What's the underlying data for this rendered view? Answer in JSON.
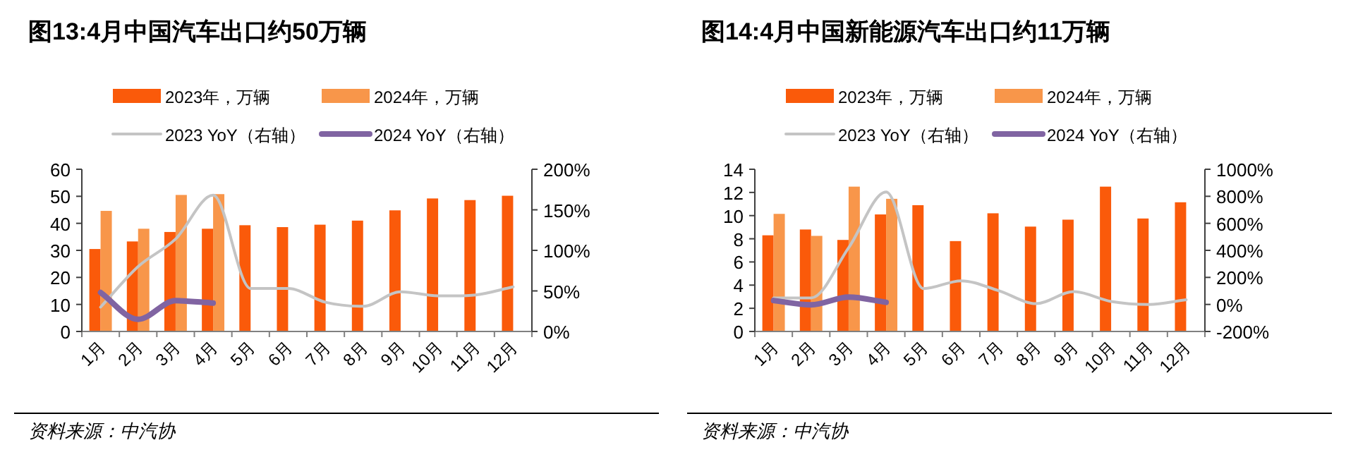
{
  "chart_data": [
    {
      "type": "bar",
      "title": "图13:4月中国汽车出口约50万辆",
      "categories": [
        "1月",
        "2月",
        "3月",
        "4月",
        "5月",
        "6月",
        "7月",
        "8月",
        "9月",
        "10月",
        "11月",
        "12月"
      ],
      "series": [
        {
          "name": "2023年，万辆",
          "color": "#fa5a0a",
          "values": [
            30.5,
            33.3,
            36.8,
            38,
            39.3,
            38.6,
            39.5,
            41,
            44.8,
            49.2,
            48.6,
            50.2
          ]
        },
        {
          "name": "2024年，万辆",
          "color": "#f8964a",
          "values": [
            44.6,
            38,
            50.5,
            50.8,
            null,
            null,
            null,
            null,
            null,
            null,
            null,
            null
          ]
        },
        {
          "name": "2023 YoY（右轴）",
          "type": "line",
          "axis": "y2",
          "color": "#c4c4c4",
          "values": [
            30,
            80,
            114,
            168,
            53,
            53,
            36,
            31,
            49,
            44,
            45,
            55
          ]
        },
        {
          "name": "2024 YoY（右轴）",
          "type": "line",
          "axis": "y2",
          "color": "#8064a2",
          "values": [
            48,
            15,
            38,
            35,
            null,
            null,
            null,
            null,
            null,
            null,
            null,
            null
          ]
        }
      ],
      "ylim": [
        0,
        60
      ],
      "yticks": [
        0,
        10,
        20,
        30,
        40,
        50,
        60
      ],
      "y2lim": [
        0,
        200
      ],
      "y2ticks": [
        {
          "value": 0,
          "label": "0%"
        },
        {
          "value": 50,
          "label": "50%"
        },
        {
          "value": 100,
          "label": "100%"
        },
        {
          "value": 150,
          "label": "150%"
        },
        {
          "value": 200,
          "label": "200%"
        }
      ],
      "legend": "top",
      "annotations": [
        "资料来源：中汽协"
      ]
    },
    {
      "type": "bar",
      "title": "图14:4月中国新能源汽车出口约11万辆",
      "categories": [
        "1月",
        "2月",
        "3月",
        "4月",
        "5月",
        "6月",
        "7月",
        "8月",
        "9月",
        "10月",
        "11月",
        "12月"
      ],
      "series": [
        {
          "name": "2023年，万辆",
          "color": "#fa5a0a",
          "values": [
            8.3,
            8.8,
            7.9,
            10.1,
            10.9,
            7.8,
            10.2,
            9.05,
            9.65,
            12.5,
            9.75,
            11.15
          ]
        },
        {
          "name": "2024年，万辆",
          "color": "#f8964a",
          "values": [
            10.15,
            8.25,
            12.5,
            11.45,
            null,
            null,
            null,
            null,
            null,
            null,
            null,
            null
          ]
        },
        {
          "name": "2023 YoY（右轴）",
          "type": "line",
          "axis": "y2",
          "color": "#c4c4c4",
          "values": [
            48,
            48,
            419,
            832,
            117,
            175,
            102,
            6,
            95,
            22,
            0,
            35
          ]
        },
        {
          "name": "2024 YoY（右轴）",
          "type": "line",
          "axis": "y2",
          "color": "#8064a2",
          "values": [
            29,
            -3,
            54,
            16,
            null,
            null,
            null,
            null,
            null,
            null,
            null,
            null
          ]
        }
      ],
      "ylim": [
        0,
        14
      ],
      "yticks": [
        0,
        2,
        4,
        6,
        8,
        10,
        12,
        14
      ],
      "y2lim": [
        -200,
        1000
      ],
      "y2ticks": [
        {
          "value": -200,
          "label": "-200%"
        },
        {
          "value": 0,
          "label": "0%"
        },
        {
          "value": 200,
          "label": "200%"
        },
        {
          "value": 400,
          "label": "400%"
        },
        {
          "value": 600,
          "label": "600%"
        },
        {
          "value": 800,
          "label": "800%"
        },
        {
          "value": 1000,
          "label": "1000%"
        }
      ],
      "legend": "top",
      "annotations": [
        "资料来源：中汽协"
      ]
    }
  ]
}
